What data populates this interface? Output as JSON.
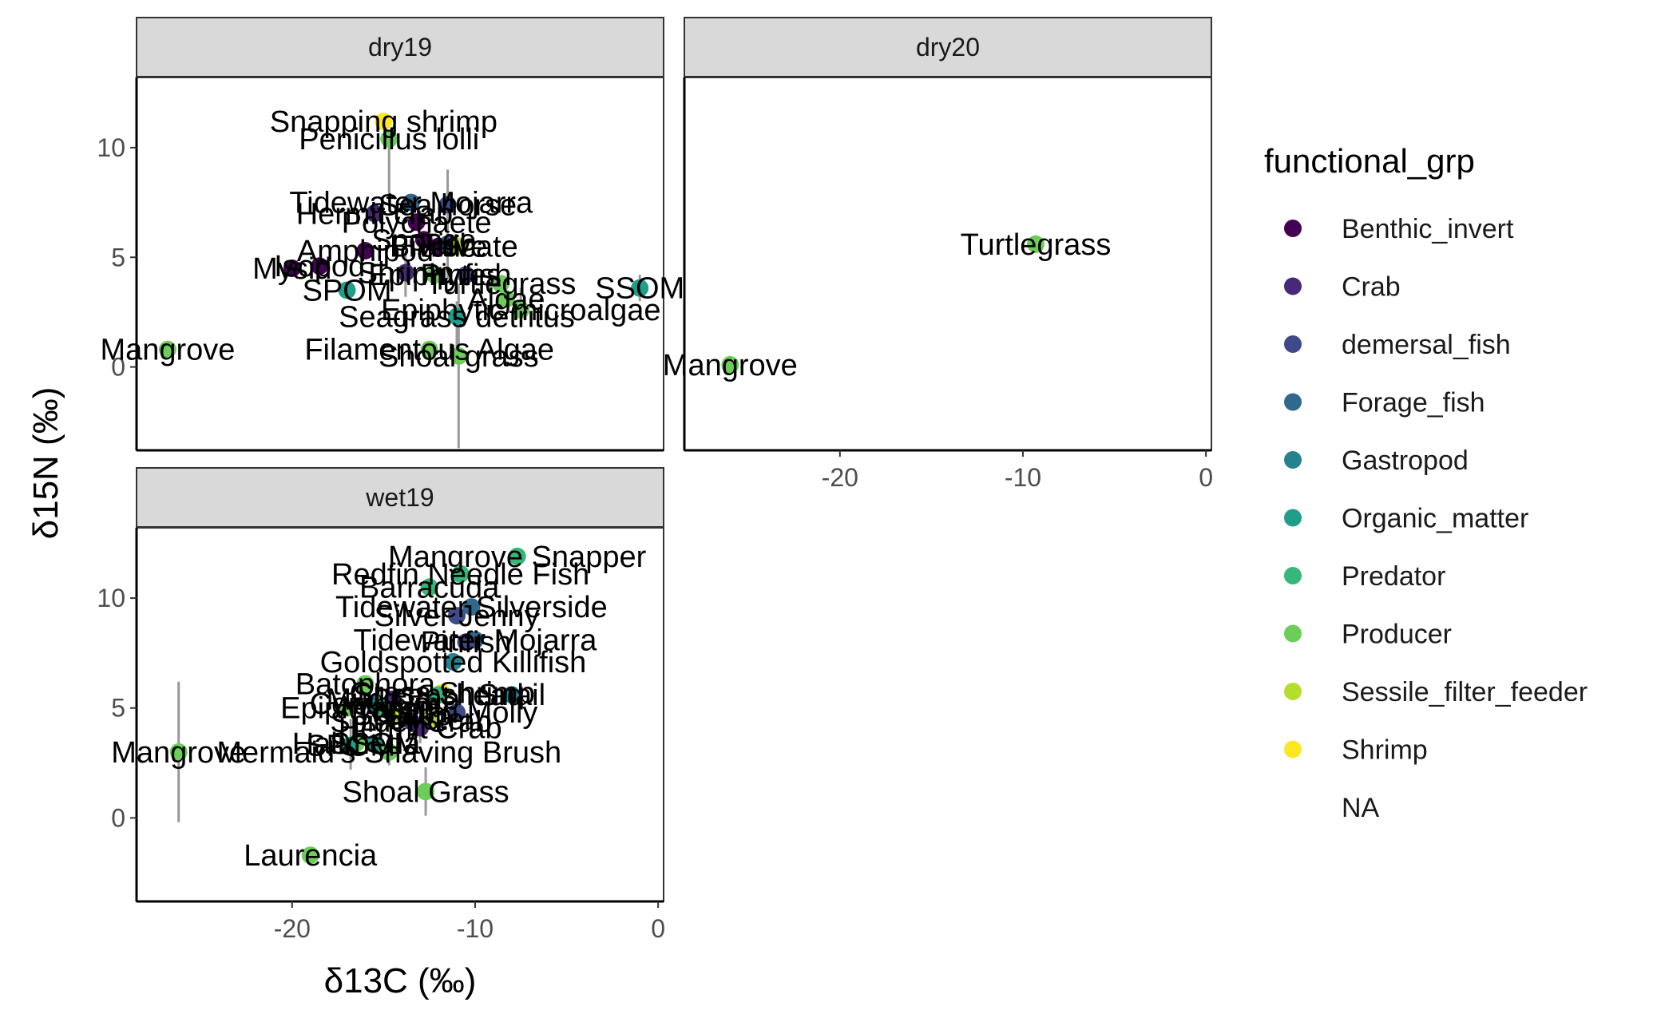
{
  "chart_data": {
    "type": "scatter",
    "xlabel": "δ13C (‰)",
    "ylabel": "δ15N (‰)",
    "xlim": [
      -28.5,
      0.3
    ],
    "ylim": [
      -3.8,
      13.2
    ],
    "x_ticks": [
      -20,
      -10,
      0
    ],
    "y_ticks": [
      0,
      5,
      10
    ],
    "grid": false,
    "legend_position": "right",
    "legend": {
      "title": "functional_grp",
      "entries": [
        {
          "label": "Benthic_invert",
          "color": "#440154"
        },
        {
          "label": "Crab",
          "color": "#482878"
        },
        {
          "label": "demersal_fish",
          "color": "#3E4A89"
        },
        {
          "label": "Forage_fish",
          "color": "#31688E"
        },
        {
          "label": "Gastropod",
          "color": "#26828E"
        },
        {
          "label": "Organic_matter",
          "color": "#1F9E89"
        },
        {
          "label": "Predator",
          "color": "#35B779"
        },
        {
          "label": "Producer",
          "color": "#6DCD59"
        },
        {
          "label": "Sessile_filter_feeder",
          "color": "#B4DE2C"
        },
        {
          "label": "Shrimp",
          "color": "#FDE725"
        },
        {
          "label": "NA",
          "color": ""
        }
      ]
    },
    "panels": [
      {
        "name": "dry19",
        "points": [
          {
            "label": "Snapping shrimp",
            "x": -15.0,
            "y": 11.2,
            "color": "#FDE725"
          },
          {
            "label": "Penicillus lolli",
            "x": -14.7,
            "y": 10.4,
            "color": "#6DCD59",
            "err_y": [
              7.5,
              10.4
            ]
          },
          {
            "label": "Tidewater Mojarra",
            "x": -13.5,
            "y": 7.5,
            "color": "#31688E"
          },
          {
            "label": "Sea horse",
            "x": -11.5,
            "y": 7.4,
            "color": "#3E4A89",
            "err_y": [
              4.0,
              9.0
            ]
          },
          {
            "label": "Hermit crab",
            "x": -15.5,
            "y": 7.0,
            "color": "#482878"
          },
          {
            "label": "Polychaete",
            "x": -13.2,
            "y": 6.6,
            "color": "#440154"
          },
          {
            "label": "Sponge",
            "x": -12.8,
            "y": 5.8,
            "color": "#440154"
          },
          {
            "label": "Bivalve",
            "x": -12.0,
            "y": 5.5,
            "color": "#440154"
          },
          {
            "label": "Fish",
            "x": -11.5,
            "y": 5.6,
            "color": "#3E4A89"
          },
          {
            "label": "Amphipod",
            "x": -16.0,
            "y": 5.3,
            "color": "#440154"
          },
          {
            "label": "Tunicate",
            "x": -10.8,
            "y": 5.5,
            "color": "#B4DE2C"
          },
          {
            "label": "Mysid",
            "x": -20.0,
            "y": 4.5,
            "color": "#440154"
          },
          {
            "label": "Isopod",
            "x": -18.5,
            "y": 4.6,
            "color": "#440154"
          },
          {
            "label": "Shrimp",
            "x": -13.8,
            "y": 4.3,
            "color": "#482878",
            "err_y": [
              3.2,
              5.3
            ]
          },
          {
            "label": "Epiphytes",
            "x": -12.2,
            "y": 4.2,
            "color": "#6DCD59"
          },
          {
            "label": "Pinfish",
            "x": -10.5,
            "y": 4.2,
            "color": "#3E4A89"
          },
          {
            "label": "Turtlegrass",
            "x": -8.6,
            "y": 3.8,
            "color": "#6DCD59"
          },
          {
            "label": "SPOM",
            "x": -17.0,
            "y": 3.5,
            "color": "#1F9E89"
          },
          {
            "label": "SSOM",
            "x": -1.0,
            "y": 3.6,
            "color": "#1F9E89",
            "err_y": [
              3.0,
              4.2
            ]
          },
          {
            "label": "Algae",
            "x": -8.3,
            "y": 3.1,
            "color": "#6DCD59"
          },
          {
            "label": "Epiphytic microalgae",
            "x": -7.5,
            "y": 2.6,
            "color": "#6DCD59",
            "err_y": [
              1.8,
              3.6
            ]
          },
          {
            "label": "Seagrass detritus",
            "x": -11.0,
            "y": 2.3,
            "color": "#1F9E89",
            "err_y": [
              0.5,
              3.0
            ]
          },
          {
            "label": "Mangrove",
            "x": -26.8,
            "y": 0.8,
            "color": "#6DCD59"
          },
          {
            "label": "Filamentous Algae",
            "x": -12.5,
            "y": 0.8,
            "color": "#6DCD59"
          },
          {
            "label": "Shoal grass",
            "x": -10.9,
            "y": 0.5,
            "color": "#6DCD59",
            "err_y": [
              -3.7,
              3.8
            ]
          }
        ]
      },
      {
        "name": "dry20",
        "points": [
          {
            "label": "Turtlegrass",
            "x": -9.3,
            "y": 5.6,
            "color": "#6DCD59",
            "err_y": [
              5.2,
              6.0
            ]
          },
          {
            "label": "Mangrove",
            "x": -26.0,
            "y": 0.1,
            "color": "#6DCD59",
            "err_y": [
              -0.3,
              0.5
            ]
          }
        ]
      },
      {
        "name": "wet19",
        "points": [
          {
            "label": "Mangrove Snapper",
            "x": -7.7,
            "y": 11.9,
            "color": "#35B779"
          },
          {
            "label": "Redfin Needle Fish",
            "x": -10.8,
            "y": 11.1,
            "color": "#35B779"
          },
          {
            "label": "Barracuda",
            "x": -12.5,
            "y": 10.5,
            "color": "#35B779"
          },
          {
            "label": "Tidewater Silverside",
            "x": -10.2,
            "y": 9.6,
            "color": "#31688E"
          },
          {
            "label": "Silver Jenny",
            "x": -11.0,
            "y": 9.2,
            "color": "#3E4A89"
          },
          {
            "label": "Tidewater Mojarra",
            "x": -10.0,
            "y": 8.1,
            "color": "#31688E"
          },
          {
            "label": "Pinfish",
            "x": -10.5,
            "y": 8.0,
            "color": "#3E4A89"
          },
          {
            "label": "Goldspotted Killifish",
            "x": -11.2,
            "y": 7.1,
            "color": "#26828E"
          },
          {
            "label": "Batophora",
            "x": -16.0,
            "y": 6.1,
            "color": "#6DCD59"
          },
          {
            "label": "Grass Shrimp",
            "x": -11.8,
            "y": 5.7,
            "color": "#FDE725"
          },
          {
            "label": "Mud Crab",
            "x": -14.5,
            "y": 5.4,
            "color": "#482878"
          },
          {
            "label": "Sheepshead",
            "x": -12.0,
            "y": 5.6,
            "color": "#35B779"
          },
          {
            "label": "Snail",
            "x": -8.0,
            "y": 5.6,
            "color": "#26828E"
          },
          {
            "label": "Epiphytes",
            "x": -17.0,
            "y": 5.0,
            "color": "#6DCD59"
          },
          {
            "label": "Cerithium",
            "x": -15.5,
            "y": 5.2,
            "color": "#26828E"
          },
          {
            "label": "Wrasse",
            "x": -15.0,
            "y": 5.0,
            "color": "#35B779"
          },
          {
            "label": "Scallop",
            "x": -14.0,
            "y": 4.7,
            "color": "#B4DE2C"
          },
          {
            "label": "Spider Crab",
            "x": -13.5,
            "y": 4.4,
            "color": "#482878"
          },
          {
            "label": "Sailfin Molly",
            "x": -11.0,
            "y": 4.8,
            "color": "#3E4A89"
          },
          {
            "label": "Oyster",
            "x": -12.5,
            "y": 4.5,
            "color": "#B4DE2C"
          },
          {
            "label": "Hermit Crab",
            "x": -13.0,
            "y": 4.1,
            "color": "#482878",
            "err_y": [
              3.4,
              5.0
            ]
          },
          {
            "label": "Halimeda",
            "x": -16.5,
            "y": 3.4,
            "color": "#6DCD59"
          },
          {
            "label": "SPOM",
            "x": -16.8,
            "y": 3.3,
            "color": "#1F9E89",
            "err_y": [
              2.2,
              4.5
            ]
          },
          {
            "label": "SSOM",
            "x": -15.5,
            "y": 3.4,
            "color": "#1F9E89"
          },
          {
            "label": "Mermaid's Shaving Brush",
            "x": -14.7,
            "y": 3.0,
            "color": "#6DCD59",
            "err_y": [
              2.4,
              3.7
            ]
          },
          {
            "label": "Mangrove",
            "x": -26.2,
            "y": 3.0,
            "color": "#6DCD59",
            "err_y": [
              -0.2,
              6.2
            ]
          },
          {
            "label": "Shoal Grass",
            "x": -12.7,
            "y": 1.2,
            "color": "#6DCD59",
            "err_y": [
              0.1,
              2.3
            ]
          },
          {
            "label": "Laurencia",
            "x": -19.0,
            "y": -1.7,
            "color": "#6DCD59"
          }
        ]
      }
    ]
  }
}
